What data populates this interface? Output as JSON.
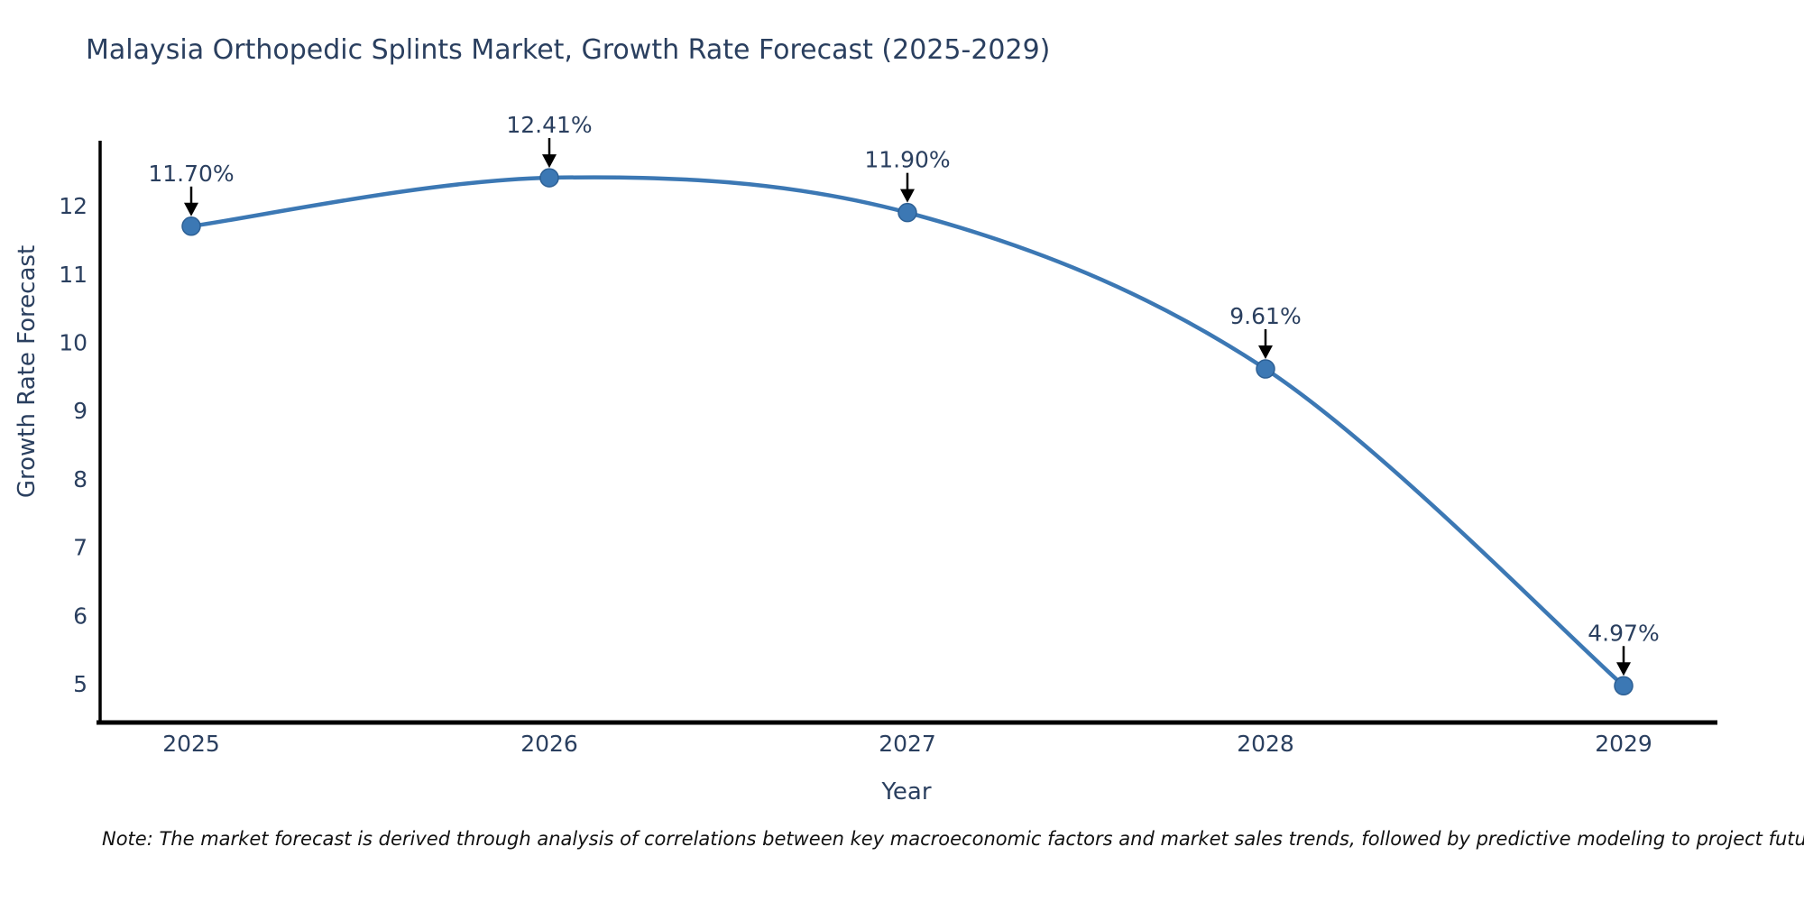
{
  "chart": {
    "title": "Malaysia Orthopedic Splints Market, Growth Rate Forecast (2025-2029)",
    "note": "Note: The market forecast is derived through analysis of correlations between key macroeconomic factors and market sales trends, followed by predictive modeling to project future sales",
    "x_axis": {
      "title": "Year"
    },
    "y_axis": {
      "title": "Growth Rate Forecast"
    }
  },
  "chart_data": {
    "type": "line",
    "line_shape": "spline",
    "title": "Malaysia Orthopedic Splints Market, Growth Rate Forecast (2025-2029)",
    "xlabel": "Year",
    "ylabel": "Growth Rate Forecast",
    "x": [
      2025,
      2026,
      2027,
      2028,
      2029
    ],
    "values": [
      11.7,
      12.41,
      11.9,
      9.61,
      4.97
    ],
    "point_labels": [
      "11.70%",
      "12.41%",
      "11.90%",
      "9.61%",
      "4.97%"
    ],
    "x_tick_labels": [
      "2025",
      "2026",
      "2027",
      "2028",
      "2029"
    ],
    "y_ticks": [
      5,
      6,
      7,
      8,
      9,
      10,
      11,
      12
    ],
    "ylim": [
      4.43,
      12.93
    ],
    "grid": false,
    "legend": false,
    "annotation_style": "black-down-arrow-to-marker",
    "colors": {
      "line": "#3c78b4",
      "marker_fill": "#3c78b4",
      "marker_edge": "#2d6095",
      "axis_line": "#000000",
      "tick_text": "#2a3f5f",
      "title_text": "#2a3f5f",
      "annotation_text": "#2a3f5f",
      "arrow": "#000000",
      "background": "#ffffff"
    }
  }
}
